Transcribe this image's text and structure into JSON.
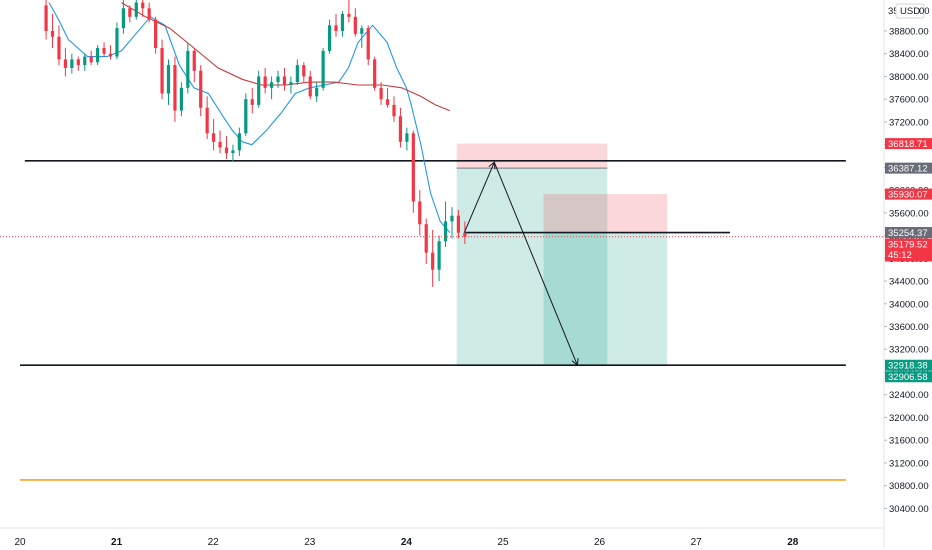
{
  "chart_data": {
    "type": "candlestick",
    "currency": "USD",
    "y_axis": {
      "range": [
        30150,
        39300
      ],
      "ticks": [
        38800,
        38400,
        38000,
        37600,
        37200,
        36800,
        36400,
        36000,
        35600,
        35200,
        34800,
        34400,
        34000,
        33600,
        33200,
        32800,
        32400,
        32000,
        31600,
        31200,
        30800,
        30400
      ],
      "tick_labels": [
        "38800.00",
        "38400.00",
        "38000.00",
        "37600.00",
        "37200.00",
        "36800.00",
        "36400.00",
        "36000.00",
        "35600.00",
        "35200.00",
        "34800.00",
        "34400.00",
        "34000.00",
        "33600.00",
        "33200.00",
        "32800.00",
        "32400.00",
        "32000.00",
        "31600.00",
        "31200.00",
        "30800.00",
        "30400.00"
      ]
    },
    "x_axis": {
      "range": [
        20.0,
        28.55
      ],
      "ticks": [
        {
          "value": 20,
          "label": "20",
          "bold": false
        },
        {
          "value": 21,
          "label": "21",
          "bold": true
        },
        {
          "value": 22,
          "label": "22",
          "bold": false
        },
        {
          "value": 23,
          "label": "23",
          "bold": false
        },
        {
          "value": 24,
          "label": "24",
          "bold": true
        },
        {
          "value": 25,
          "label": "25",
          "bold": false
        },
        {
          "value": 26,
          "label": "26",
          "bold": false
        },
        {
          "value": 27,
          "label": "27",
          "bold": false
        },
        {
          "value": 28,
          "label": "28",
          "bold": true
        }
      ]
    },
    "candles": {
      "start_day": 20.27,
      "interval_days": 0.0667,
      "body_width": 3.2,
      "ohlc": [
        [
          39250,
          39350,
          38650,
          38800
        ],
        [
          38800,
          39100,
          38500,
          38700
        ],
        [
          38700,
          38900,
          38200,
          38300
        ],
        [
          38300,
          38500,
          38000,
          38150
        ],
        [
          38150,
          38400,
          38050,
          38300
        ],
        [
          38300,
          38350,
          38100,
          38200
        ],
        [
          38200,
          38400,
          38100,
          38350
        ],
        [
          38350,
          38450,
          38200,
          38250
        ],
        [
          38250,
          38550,
          38200,
          38500
        ],
        [
          38500,
          38600,
          38350,
          38400
        ],
        [
          38400,
          38550,
          38300,
          38350
        ],
        [
          38350,
          38950,
          38300,
          38850
        ],
        [
          38850,
          39350,
          38750,
          39200
        ],
        [
          39200,
          39250,
          38950,
          39050
        ],
        [
          39050,
          39350,
          39000,
          39300
        ],
        [
          39300,
          39350,
          39050,
          39200
        ],
        [
          39200,
          39300,
          38950,
          39000
        ],
        [
          39000,
          39050,
          38400,
          38500
        ],
        [
          38500,
          38650,
          37600,
          37700
        ],
        [
          37700,
          38300,
          37500,
          38200
        ],
        [
          38200,
          38350,
          37200,
          37400
        ],
        [
          37400,
          37900,
          37300,
          37800
        ],
        [
          37800,
          38600,
          37700,
          38450
        ],
        [
          38450,
          38500,
          37900,
          38100
        ],
        [
          38100,
          38200,
          37300,
          37450
        ],
        [
          37450,
          37650,
          36900,
          37000
        ],
        [
          37000,
          37250,
          36700,
          36850
        ],
        [
          36850,
          37050,
          36650,
          36750
        ],
        [
          36750,
          36950,
          36550,
          36650
        ],
        [
          36650,
          36800,
          36500,
          36700
        ],
        [
          36700,
          37100,
          36600,
          37000
        ],
        [
          37000,
          37700,
          36950,
          37600
        ],
        [
          37600,
          37800,
          37350,
          37500
        ],
        [
          37500,
          38100,
          37450,
          38000
        ],
        [
          38000,
          38150,
          37700,
          37800
        ],
        [
          37800,
          38000,
          37600,
          37900
        ],
        [
          37900,
          38100,
          37800,
          38000
        ],
        [
          38000,
          38150,
          37750,
          37850
        ],
        [
          37850,
          38000,
          37700,
          37900
        ],
        [
          37900,
          38300,
          37850,
          38200
        ],
        [
          38200,
          38250,
          37900,
          38000
        ],
        [
          38000,
          38100,
          37600,
          37650
        ],
        [
          37650,
          37900,
          37550,
          37800
        ],
        [
          37800,
          38500,
          37750,
          38450
        ],
        [
          38450,
          39000,
          38400,
          38900
        ],
        [
          38900,
          39100,
          38700,
          38800
        ],
        [
          38800,
          39150,
          38700,
          39100
        ],
        [
          39100,
          39350,
          38950,
          39050
        ],
        [
          39050,
          39200,
          38700,
          38750
        ],
        [
          38750,
          38900,
          38500,
          38850
        ],
        [
          38850,
          38900,
          38200,
          38300
        ],
        [
          38300,
          38350,
          37750,
          37800
        ],
        [
          37800,
          37900,
          37500,
          37600
        ],
        [
          37600,
          37800,
          37450,
          37500
        ],
        [
          37500,
          37650,
          37200,
          37300
        ],
        [
          37300,
          37450,
          36750,
          36850
        ],
        [
          36850,
          37100,
          36700,
          37000
        ],
        [
          37000,
          37050,
          35600,
          35800
        ],
        [
          35800,
          36000,
          35200,
          35400
        ],
        [
          35400,
          35500,
          34700,
          34900
        ],
        [
          34900,
          35300,
          34300,
          34600
        ],
        [
          34600,
          35200,
          34400,
          35100
        ],
        [
          35100,
          35800,
          35000,
          35450
        ],
        [
          35450,
          35700,
          35150,
          35550
        ],
        [
          35550,
          35650,
          35150,
          35250
        ],
        [
          35250,
          35450,
          35050,
          35180
        ]
      ]
    },
    "moving_averages": [
      {
        "color": "#2196f3",
        "values": [
          [
            20.3,
            39300
          ],
          [
            20.4,
            39000
          ],
          [
            20.5,
            38650
          ],
          [
            20.7,
            38350
          ],
          [
            20.9,
            38350
          ],
          [
            21.05,
            38450
          ],
          [
            21.2,
            38750
          ],
          [
            21.35,
            39050
          ],
          [
            21.5,
            38900
          ],
          [
            21.65,
            38200
          ],
          [
            21.8,
            37800
          ],
          [
            21.95,
            37700
          ],
          [
            22.1,
            37300
          ],
          [
            22.2,
            37050
          ],
          [
            22.3,
            36850
          ],
          [
            22.4,
            36800
          ],
          [
            22.55,
            37050
          ],
          [
            22.7,
            37350
          ],
          [
            22.85,
            37700
          ],
          [
            23.0,
            37800
          ],
          [
            23.15,
            37850
          ],
          [
            23.3,
            37900
          ],
          [
            23.4,
            38150
          ],
          [
            23.5,
            38600
          ],
          [
            23.65,
            38900
          ],
          [
            23.8,
            38600
          ],
          [
            23.9,
            38150
          ],
          [
            24.0,
            37800
          ],
          [
            24.05,
            37500
          ],
          [
            24.15,
            36800
          ],
          [
            24.25,
            35950
          ],
          [
            24.35,
            35450
          ],
          [
            24.45,
            35250
          ]
        ]
      },
      {
        "color": "#c33c3c",
        "values": [
          [
            21.05,
            39300
          ],
          [
            21.3,
            39050
          ],
          [
            21.55,
            38850
          ],
          [
            21.8,
            38500
          ],
          [
            22.05,
            38150
          ],
          [
            22.3,
            37950
          ],
          [
            22.5,
            37850
          ],
          [
            22.75,
            37850
          ],
          [
            23.0,
            37900
          ],
          [
            23.25,
            37900
          ],
          [
            23.5,
            37850
          ],
          [
            23.75,
            37850
          ],
          [
            23.95,
            37800
          ],
          [
            24.15,
            37650
          ],
          [
            24.3,
            37500
          ],
          [
            24.45,
            37400
          ]
        ]
      }
    ],
    "horizontal_lines": [
      {
        "y": 36516,
        "x_from": 20.05,
        "x_to": 28.55,
        "color": "#131722"
      },
      {
        "y": 35254,
        "x_from": 24.6,
        "x_to": 27.35,
        "color": "#131722"
      },
      {
        "y": 32920,
        "x_from": 20.0,
        "x_to": 28.55,
        "color": "#131722"
      },
      {
        "y": 30900,
        "x_from": 20.0,
        "x_to": 28.55,
        "color": "#f7a21b"
      }
    ],
    "positions": [
      {
        "x_from": 24.52,
        "x_to": 26.08,
        "stop_top": 36818.71,
        "entry": 36387.12,
        "target": 32918.38
      },
      {
        "x_from": 25.42,
        "x_to": 26.7,
        "stop_top": 35930.07,
        "entry": 35254.37,
        "target": 32906.58
      }
    ],
    "price_line": {
      "y": 35179.52,
      "color": "#f23645"
    },
    "arrows": [
      {
        "points": [
          [
            24.6,
            35254
          ],
          [
            24.91,
            36490
          ],
          [
            25.77,
            32920
          ]
        ]
      }
    ],
    "badges": [
      {
        "value": 36818.71,
        "text": "36818.71",
        "color": "#f23645"
      },
      {
        "value": 36387.12,
        "text": "36387.12",
        "color": "#6a6d78"
      },
      {
        "value": 35930.07,
        "text": "35930.07",
        "color": "#f23645"
      },
      {
        "value": 35254.37,
        "text": "35254.37",
        "color": "#6a6d78"
      },
      {
        "value": 35179.52,
        "text": "35179.52",
        "sub": "45:12",
        "color": "#f23645"
      },
      {
        "value": 32918.38,
        "text": "32918.38",
        "color": "#089981"
      },
      {
        "value": 32906.58,
        "text": "32906.58",
        "color": "#089981"
      }
    ],
    "axis_unit": "USD",
    "partial_label": "35",
    "partial_label_tail": "00"
  }
}
